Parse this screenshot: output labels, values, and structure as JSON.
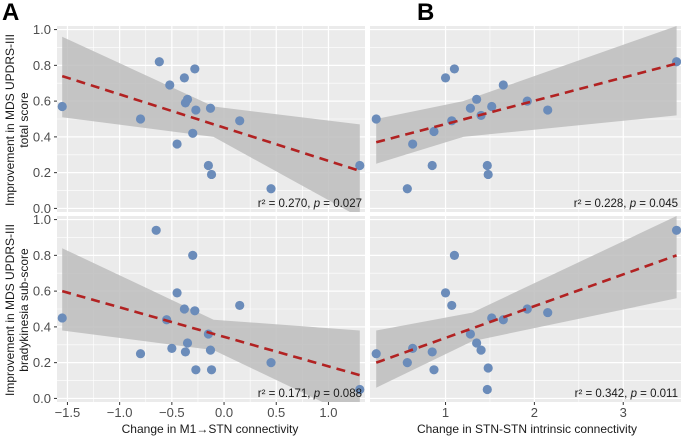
{
  "figure": {
    "panel_letters": [
      "A",
      "B"
    ],
    "ylabel_top": [
      "Improvement in MDS UPDRS-III",
      "total score"
    ],
    "ylabel_bottom": [
      "Improvement in MDS UPDRS-III",
      "bradykinesia sub-score"
    ],
    "xlabel_left": "Change in M1→STN connectivity",
    "xlabel_right": "Change in STN-STN intrinsic connectivity"
  },
  "colors": {
    "panel_background": "#ebebeb",
    "grid": "#ffffff",
    "points": "#6b8cba",
    "fit_line": "#b22222",
    "ribbon": "#bdbdbd"
  },
  "chart_data": [
    {
      "id": "A-top",
      "type": "scatter",
      "xlim": [
        -1.6,
        1.35
      ],
      "ylim": [
        -0.02,
        1.02
      ],
      "x_ticks": [
        -1.5,
        -1.0,
        -0.5,
        0.0,
        0.5,
        1.0
      ],
      "x_tick_labels": [
        "−1.5",
        "−1.0",
        "−0.5",
        "0.0",
        "0.5",
        "1.0"
      ],
      "y_ticks": [
        0.0,
        0.2,
        0.4,
        0.6,
        0.8,
        1.0
      ],
      "y_tick_labels": [
        "0.0",
        "0.2",
        "0.4",
        "0.6",
        "0.8",
        "1.0"
      ],
      "x": [
        -1.55,
        -0.8,
        -0.62,
        -0.52,
        -0.45,
        -0.38,
        -0.37,
        -0.35,
        -0.3,
        -0.28,
        -0.27,
        -0.15,
        -0.13,
        -0.12,
        0.15,
        0.45,
        1.3
      ],
      "y": [
        0.57,
        0.5,
        0.82,
        0.69,
        0.36,
        0.73,
        0.59,
        0.61,
        0.42,
        0.78,
        0.55,
        0.24,
        0.56,
        0.19,
        0.49,
        0.11,
        0.24
      ],
      "fit": {
        "x": [
          -1.55,
          1.3
        ],
        "y": [
          0.74,
          0.21
        ]
      },
      "ribbon": {
        "x": [
          -1.55,
          -0.1,
          1.3
        ],
        "upper": [
          0.96,
          0.57,
          0.47
        ],
        "lower": [
          0.51,
          0.4,
          -0.05
        ]
      },
      "stat": {
        "r2_label": "r² = 0.270, ",
        "p_label": "p",
        "p_value": " = 0.027"
      }
    },
    {
      "id": "B-top",
      "type": "scatter",
      "xlim": [
        0.15,
        3.65
      ],
      "ylim": [
        -0.02,
        1.02
      ],
      "x_ticks": [
        1,
        2,
        3
      ],
      "x_tick_labels": [
        "1",
        "2",
        "3"
      ],
      "y_ticks": [
        0.0,
        0.2,
        0.4,
        0.6,
        0.8,
        1.0
      ],
      "y_tick_labels": [
        "0.0",
        "0.2",
        "0.4",
        "0.6",
        "0.8",
        "1.0"
      ],
      "x": [
        0.22,
        0.57,
        0.63,
        0.85,
        0.87,
        1.0,
        1.07,
        1.1,
        1.28,
        1.35,
        1.4,
        1.47,
        1.48,
        1.52,
        1.65,
        1.92,
        2.15,
        3.6
      ],
      "y": [
        0.5,
        0.11,
        0.36,
        0.24,
        0.43,
        0.73,
        0.49,
        0.78,
        0.56,
        0.61,
        0.52,
        0.24,
        0.19,
        0.57,
        0.69,
        0.6,
        0.55,
        0.82
      ],
      "fit": {
        "x": [
          0.22,
          3.6
        ],
        "y": [
          0.37,
          0.81
        ]
      },
      "ribbon": {
        "x": [
          0.22,
          1.2,
          3.6
        ],
        "upper": [
          0.5,
          0.6,
          1.02
        ],
        "lower": [
          0.25,
          0.4,
          0.52
        ]
      },
      "stat": {
        "r2_label": "r² = 0.228, ",
        "p_label": "p",
        "p_value": " = 0.045"
      }
    },
    {
      "id": "A-bottom",
      "type": "scatter",
      "xlim": [
        -1.6,
        1.35
      ],
      "ylim": [
        -0.02,
        1.02
      ],
      "x_ticks": [
        -1.5,
        -1.0,
        -0.5,
        0.0,
        0.5,
        1.0
      ],
      "x_tick_labels": [
        "−1.5",
        "−1.0",
        "−0.5",
        "0.0",
        "0.5",
        "1.0"
      ],
      "y_ticks": [
        0.0,
        0.2,
        0.4,
        0.6,
        0.8,
        1.0
      ],
      "y_tick_labels": [
        "0.0",
        "0.2",
        "0.4",
        "0.6",
        "0.8",
        "1.0"
      ],
      "x": [
        -1.55,
        -0.8,
        -0.65,
        -0.55,
        -0.5,
        -0.45,
        -0.38,
        -0.37,
        -0.35,
        -0.3,
        -0.28,
        -0.27,
        -0.15,
        -0.13,
        -0.12,
        0.15,
        0.45,
        1.3
      ],
      "y": [
        0.45,
        0.25,
        0.94,
        0.44,
        0.28,
        0.59,
        0.5,
        0.26,
        0.31,
        0.8,
        0.49,
        0.16,
        0.36,
        0.27,
        0.16,
        0.52,
        0.2,
        0.05
      ],
      "fit": {
        "x": [
          -1.55,
          1.3
        ],
        "y": [
          0.6,
          0.13
        ]
      },
      "ribbon": {
        "x": [
          -1.55,
          -0.1,
          1.3
        ],
        "upper": [
          0.84,
          0.44,
          0.38
        ],
        "lower": [
          0.38,
          0.27,
          -0.12
        ]
      },
      "stat": {
        "r2_label": "r² = 0.171, ",
        "p_label": "p",
        "p_value": " = 0.088"
      }
    },
    {
      "id": "B-bottom",
      "type": "scatter",
      "xlim": [
        0.15,
        3.65
      ],
      "ylim": [
        -0.02,
        1.02
      ],
      "x_ticks": [
        1,
        2,
        3
      ],
      "x_tick_labels": [
        "1",
        "2",
        "3"
      ],
      "y_ticks": [
        0.0,
        0.2,
        0.4,
        0.6,
        0.8,
        1.0
      ],
      "y_tick_labels": [
        "0.0",
        "0.2",
        "0.4",
        "0.6",
        "0.8",
        "1.0"
      ],
      "x": [
        0.22,
        0.57,
        0.63,
        0.85,
        0.87,
        1.0,
        1.07,
        1.1,
        1.28,
        1.35,
        1.4,
        1.47,
        1.48,
        1.52,
        1.65,
        1.92,
        2.15,
        3.6
      ],
      "y": [
        0.25,
        0.2,
        0.28,
        0.26,
        0.16,
        0.59,
        0.52,
        0.8,
        0.36,
        0.31,
        0.27,
        0.05,
        0.17,
        0.45,
        0.44,
        0.5,
        0.48,
        0.94
      ],
      "fit": {
        "x": [
          0.22,
          3.6
        ],
        "y": [
          0.2,
          0.8
        ]
      },
      "ribbon": {
        "x": [
          0.22,
          1.3,
          3.6
        ],
        "upper": [
          0.38,
          0.48,
          1.02
        ],
        "lower": [
          0.06,
          0.32,
          0.56
        ]
      },
      "stat": {
        "r2_label": "r² = 0.342, ",
        "p_label": "p",
        "p_value": " = 0.011"
      }
    }
  ]
}
